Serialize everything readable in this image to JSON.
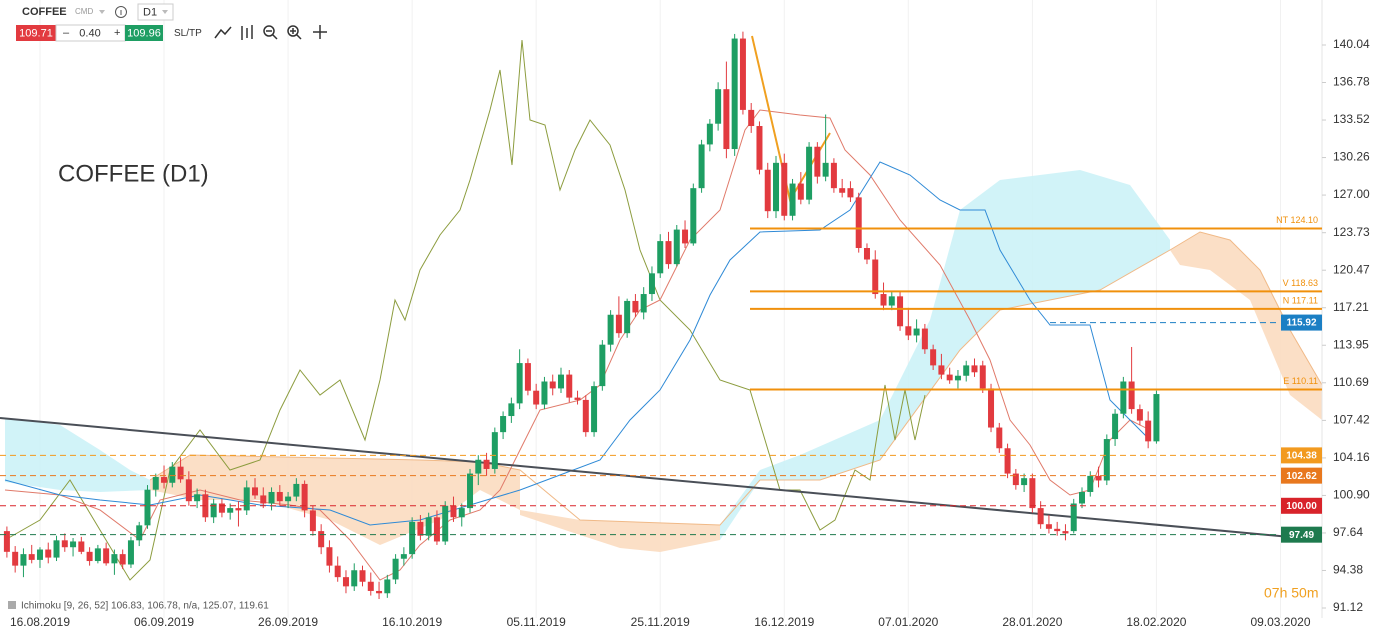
{
  "toolbar": {
    "symbol": "COFFEE",
    "market": "CMD",
    "timeframe": "D1",
    "sell": "109.71",
    "minus": "–",
    "volume": "0.40",
    "plus": "+",
    "buy": "109.96",
    "sltp": "SL/TP"
  },
  "chart_data": {
    "type": "candlestick",
    "title": "COFFEE (D1)",
    "categories": [
      null,
      null,
      null,
      null,
      "16.08.2019",
      null,
      null,
      null,
      null,
      null,
      null,
      null,
      null,
      null,
      null,
      null,
      null,
      null,
      null,
      "06.09.2019",
      null,
      null,
      null,
      null,
      null,
      null,
      null,
      null,
      null,
      null,
      null,
      null,
      null,
      null,
      "26.09.2019",
      null,
      null,
      null,
      null,
      null,
      null,
      null,
      null,
      null,
      null,
      null,
      null,
      null,
      null,
      "16.10.2019",
      null,
      null,
      null,
      null,
      null,
      null,
      null,
      null,
      null,
      null,
      null,
      null,
      null,
      null,
      "05.11.2019",
      null,
      null,
      null,
      null,
      null,
      null,
      null,
      null,
      null,
      null,
      null,
      null,
      null,
      null,
      "25.11.2019",
      null,
      null,
      null,
      null,
      null,
      null,
      null,
      null,
      null,
      null,
      null,
      null,
      null,
      null,
      "16.12.2019",
      null,
      null,
      null,
      null,
      null,
      null,
      null,
      null,
      null,
      null,
      null,
      null,
      null,
      null,
      "07.01.2020",
      null,
      null,
      null,
      null,
      null,
      null,
      null,
      null,
      null,
      null,
      null,
      null,
      null,
      null,
      "28.01.2020",
      null,
      null,
      null,
      null,
      null,
      null,
      null,
      null,
      null,
      null,
      null,
      null,
      null,
      null,
      "18.02.2020",
      null,
      null,
      null,
      null,
      null,
      null,
      null,
      null,
      null,
      null,
      null,
      null,
      null,
      null,
      "09.03.2020"
    ],
    "candles": [
      [
        97.8,
        98.2,
        95.5,
        96.0
      ],
      [
        96.0,
        96.5,
        94.2,
        94.8
      ],
      [
        94.8,
        96.3,
        93.8,
        95.8
      ],
      [
        95.8,
        96.6,
        95.0,
        95.3
      ],
      [
        95.3,
        96.4,
        94.6,
        96.2
      ],
      [
        96.2,
        96.8,
        95.0,
        95.5
      ],
      [
        95.5,
        97.4,
        95.2,
        97.0
      ],
      [
        97.0,
        97.6,
        96.0,
        96.4
      ],
      [
        96.4,
        97.2,
        95.6,
        96.9
      ],
      [
        96.9,
        97.3,
        95.8,
        96.0
      ],
      [
        96.0,
        96.4,
        94.8,
        95.2
      ],
      [
        95.2,
        96.6,
        95.0,
        96.3
      ],
      [
        96.3,
        96.8,
        94.8,
        95.0
      ],
      [
        95.0,
        96.2,
        94.0,
        95.8
      ],
      [
        95.8,
        96.2,
        94.5,
        94.9
      ],
      [
        94.9,
        97.3,
        94.6,
        97.0
      ],
      [
        97.0,
        98.6,
        96.5,
        98.3
      ],
      [
        98.3,
        101.8,
        98.0,
        101.4
      ],
      [
        101.4,
        102.8,
        100.8,
        102.5
      ],
      [
        102.5,
        103.5,
        101.5,
        102.0
      ],
      [
        102.0,
        103.8,
        101.6,
        103.4
      ],
      [
        103.4,
        104.2,
        102.0,
        102.3
      ],
      [
        102.3,
        103.0,
        100.0,
        100.4
      ],
      [
        100.4,
        101.5,
        99.8,
        101.0
      ],
      [
        101.0,
        101.4,
        98.6,
        99.0
      ],
      [
        99.0,
        100.6,
        98.5,
        100.2
      ],
      [
        100.2,
        100.6,
        99.0,
        99.4
      ],
      [
        99.4,
        100.2,
        98.8,
        99.8
      ],
      [
        99.8,
        100.4,
        98.2,
        99.6
      ],
      [
        99.6,
        102.2,
        99.2,
        101.6
      ],
      [
        101.6,
        102.4,
        100.6,
        100.9
      ],
      [
        100.9,
        101.6,
        99.8,
        100.2
      ],
      [
        100.2,
        101.6,
        99.6,
        101.2
      ],
      [
        101.2,
        101.8,
        100.0,
        100.4
      ],
      [
        100.4,
        101.2,
        99.8,
        100.8
      ],
      [
        100.8,
        102.4,
        100.4,
        101.9
      ],
      [
        101.9,
        102.2,
        99.0,
        99.6
      ],
      [
        99.6,
        100.0,
        97.4,
        97.8
      ],
      [
        97.8,
        98.4,
        95.8,
        96.4
      ],
      [
        96.4,
        97.0,
        94.2,
        94.8
      ],
      [
        94.8,
        95.6,
        93.4,
        93.8
      ],
      [
        93.8,
        94.4,
        92.4,
        93.0
      ],
      [
        93.0,
        95.0,
        92.6,
        94.4
      ],
      [
        94.4,
        94.8,
        93.0,
        93.4
      ],
      [
        93.4,
        94.2,
        92.2,
        92.6
      ],
      [
        92.6,
        93.4,
        91.9,
        92.4
      ],
      [
        92.4,
        94.0,
        92.0,
        93.6
      ],
      [
        93.6,
        95.8,
        93.2,
        95.4
      ],
      [
        95.4,
        96.4,
        94.8,
        95.8
      ],
      [
        95.8,
        99.0,
        95.4,
        98.6
      ],
      [
        98.6,
        99.2,
        97.0,
        97.4
      ],
      [
        97.4,
        99.4,
        97.0,
        99.0
      ],
      [
        99.0,
        99.6,
        96.6,
        96.9
      ],
      [
        96.9,
        100.4,
        96.6,
        100.0
      ],
      [
        100.0,
        100.8,
        98.6,
        99.0
      ],
      [
        99.0,
        100.2,
        98.2,
        99.8
      ],
      [
        99.8,
        103.2,
        99.4,
        102.8
      ],
      [
        102.8,
        104.4,
        101.8,
        104.0
      ],
      [
        104.0,
        104.6,
        102.6,
        103.2
      ],
      [
        103.2,
        106.8,
        102.8,
        106.4
      ],
      [
        106.4,
        108.2,
        105.8,
        107.8
      ],
      [
        107.8,
        109.4,
        107.2,
        108.9
      ],
      [
        108.9,
        113.6,
        108.4,
        112.4
      ],
      [
        112.4,
        112.8,
        109.6,
        110.0
      ],
      [
        110.0,
        110.6,
        108.4,
        108.8
      ],
      [
        108.8,
        111.2,
        108.4,
        110.8
      ],
      [
        110.8,
        111.4,
        109.6,
        110.2
      ],
      [
        110.2,
        112.0,
        109.8,
        111.4
      ],
      [
        111.4,
        111.8,
        109.0,
        109.4
      ],
      [
        109.4,
        110.0,
        108.8,
        109.2
      ],
      [
        109.2,
        109.6,
        106.0,
        106.4
      ],
      [
        106.4,
        110.8,
        106.0,
        110.4
      ],
      [
        110.4,
        114.4,
        110.0,
        114.0
      ],
      [
        114.0,
        117.0,
        113.4,
        116.6
      ],
      [
        116.6,
        118.2,
        114.6,
        115.0
      ],
      [
        115.0,
        118.0,
        114.6,
        117.8
      ],
      [
        117.8,
        118.4,
        116.4,
        116.8
      ],
      [
        116.8,
        119.0,
        116.2,
        118.4
      ],
      [
        118.4,
        120.8,
        117.8,
        120.2
      ],
      [
        120.2,
        123.6,
        119.8,
        123.0
      ],
      [
        123.0,
        123.8,
        120.6,
        121.0
      ],
      [
        121.0,
        124.4,
        120.8,
        124.0
      ],
      [
        124.0,
        124.8,
        122.4,
        122.8
      ],
      [
        122.8,
        128.0,
        122.6,
        127.6
      ],
      [
        127.6,
        131.8,
        127.2,
        131.4
      ],
      [
        131.4,
        133.6,
        130.8,
        133.2
      ],
      [
        133.2,
        136.8,
        132.6,
        136.2
      ],
      [
        136.2,
        138.6,
        130.2,
        131.0
      ],
      [
        131.0,
        141.0,
        130.4,
        140.6
      ],
      [
        140.6,
        141.2,
        134.0,
        134.4
      ],
      [
        134.4,
        135.0,
        132.4,
        133.0
      ],
      [
        133.0,
        133.4,
        128.8,
        129.2
      ],
      [
        129.2,
        129.8,
        125.0,
        125.6
      ],
      [
        125.6,
        130.4,
        125.0,
        129.8
      ],
      [
        129.8,
        130.6,
        124.8,
        125.2
      ],
      [
        125.2,
        128.4,
        124.8,
        128.0
      ],
      [
        128.0,
        129.0,
        126.2,
        126.6
      ],
      [
        126.6,
        131.6,
        126.2,
        131.2
      ],
      [
        131.2,
        131.6,
        128.0,
        128.6
      ],
      [
        128.6,
        134.0,
        128.2,
        129.8
      ],
      [
        129.8,
        130.2,
        127.2,
        127.6
      ],
      [
        127.6,
        128.4,
        126.8,
        127.2
      ],
      [
        127.6,
        128.2,
        126.4,
        126.8
      ],
      [
        126.8,
        127.2,
        122.0,
        122.4
      ],
      [
        122.4,
        122.8,
        121.0,
        121.4
      ],
      [
        121.4,
        122.2,
        118.0,
        118.4
      ],
      [
        118.4,
        119.4,
        117.0,
        117.4
      ],
      [
        117.4,
        118.6,
        117.0,
        118.2
      ],
      [
        118.2,
        118.6,
        115.2,
        115.6
      ],
      [
        115.6,
        117.2,
        114.4,
        114.8
      ],
      [
        114.8,
        116.2,
        114.2,
        115.4
      ],
      [
        115.4,
        115.8,
        113.2,
        113.6
      ],
      [
        113.6,
        114.0,
        111.8,
        112.2
      ],
      [
        112.2,
        113.2,
        111.0,
        111.4
      ],
      [
        111.4,
        112.0,
        110.6,
        110.9
      ],
      [
        110.9,
        111.8,
        110.2,
        111.3
      ],
      [
        111.3,
        112.6,
        110.8,
        112.2
      ],
      [
        112.2,
        112.8,
        111.2,
        111.6
      ],
      [
        112.2,
        112.6,
        109.8,
        110.2
      ],
      [
        110.2,
        110.6,
        106.4,
        106.8
      ],
      [
        106.8,
        107.2,
        104.6,
        105.0
      ],
      [
        105.0,
        105.4,
        102.4,
        102.8
      ],
      [
        102.8,
        103.2,
        101.4,
        101.8
      ],
      [
        101.8,
        102.8,
        101.2,
        102.4
      ],
      [
        102.4,
        102.8,
        99.4,
        99.8
      ],
      [
        99.8,
        100.4,
        98.0,
        98.4
      ],
      [
        98.4,
        99.2,
        97.6,
        98.0
      ],
      [
        98.0,
        98.6,
        97.4,
        97.8
      ],
      [
        97.8,
        98.4,
        97.0,
        97.6
      ],
      [
        97.8,
        100.6,
        97.6,
        100.2
      ],
      [
        100.2,
        101.6,
        99.8,
        101.2
      ],
      [
        101.2,
        103.0,
        100.8,
        102.6
      ],
      [
        102.6,
        103.4,
        101.6,
        102.2
      ],
      [
        102.2,
        106.2,
        101.8,
        105.8
      ],
      [
        105.8,
        108.4,
        105.2,
        108.0
      ],
      [
        108.0,
        111.2,
        107.6,
        110.8
      ],
      [
        110.8,
        113.8,
        108.0,
        108.4
      ],
      [
        108.4,
        108.8,
        107.0,
        107.4
      ],
      [
        107.4,
        108.2,
        105.0,
        105.6
      ],
      [
        105.6,
        110.0,
        105.4,
        109.71
      ],
      null,
      null,
      null,
      null,
      null,
      null,
      null,
      null,
      null,
      null,
      null,
      null,
      null,
      null,
      null
    ],
    "up_color": "#1e9e63",
    "down_color": "#e23a3f",
    "ylim": [
      90.25,
      143.95
    ],
    "yticks": [
      140.04,
      136.78,
      133.52,
      130.26,
      {
        "value": 127,
        "label": "127.00"
      },
      123.73,
      120.47,
      117.21,
      113.95,
      110.69,
      107.42,
      104.16,
      {
        "value": 100.9,
        "label": "100.90"
      },
      97.64,
      94.38,
      91.12
    ],
    "grid": true,
    "levels": [
      {
        "label": "NT 124.10",
        "value": 124.1,
        "color": "#f0900c",
        "style": "solid"
      },
      {
        "label": "V 118.63",
        "value": 118.63,
        "color": "#f0900c",
        "style": "solid"
      },
      {
        "label": "N 117.11",
        "value": 117.11,
        "color": "#f0900c",
        "style": "solid"
      },
      {
        "label": "E 110.11",
        "value": 110.11,
        "color": "#f0900c",
        "style": "solid"
      },
      {
        "value": 115.92,
        "color": "#1b7fc4",
        "style": "dashed"
      },
      {
        "value": 104.38,
        "color": "#f29a1f",
        "style": "dashed"
      },
      {
        "value": 102.62,
        "color": "#e8781e",
        "style": "dashed"
      },
      {
        "value": 100,
        "label": "100.00",
        "color": "#d8232a",
        "style": "dashed"
      },
      {
        "value": 97.49,
        "color": "#1e7a4e",
        "style": "dashed"
      }
    ],
    "indicator_label": "Ichimoku [9, 26, 52] 106.83, 106.78, n/a, 125.07, 119.61",
    "countdown": "07h 50m"
  }
}
